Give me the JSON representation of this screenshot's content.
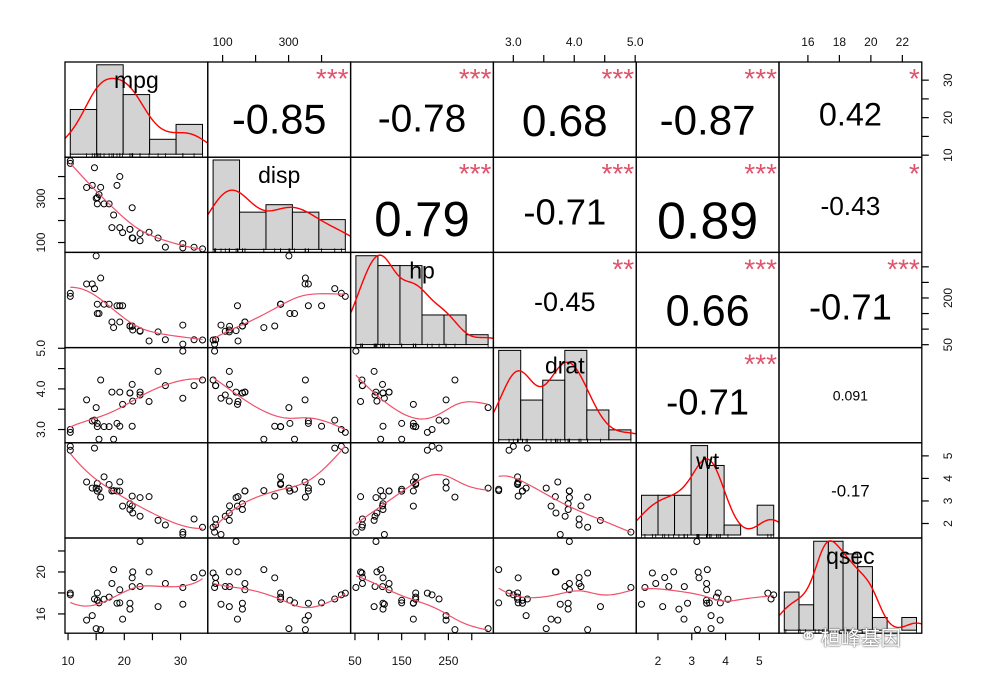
{
  "chart_data": {
    "type": "scatter-matrix",
    "title": "",
    "colors": {
      "stars": "#DF536B",
      "smooth": "#F0506A",
      "density": "#FF0000",
      "bars": "#D3D3D3"
    },
    "variables": [
      {
        "name": "mpg",
        "bins": 5,
        "values": [
          21.0,
          21.0,
          22.8,
          21.4,
          18.7,
          18.1,
          14.3,
          24.4,
          22.8,
          19.2,
          17.8,
          16.4,
          17.3,
          15.2,
          10.4,
          10.4,
          14.7,
          32.4,
          30.4,
          33.9,
          21.5,
          15.5,
          15.2,
          13.3,
          19.2,
          27.3,
          26.0,
          30.4,
          15.8,
          19.7,
          15.0,
          21.4
        ]
      },
      {
        "name": "disp",
        "bins": 5,
        "values": [
          160,
          160,
          108,
          258,
          360,
          225,
          360,
          146.7,
          140.8,
          167.6,
          167.6,
          275.8,
          275.8,
          275.8,
          472,
          460,
          440,
          78.7,
          75.7,
          71.1,
          120.1,
          318,
          304,
          350,
          400,
          79,
          120.3,
          95.1,
          351,
          145,
          301,
          121
        ]
      },
      {
        "name": "hp",
        "bins": 6,
        "values": [
          110,
          110,
          93,
          110,
          175,
          105,
          245,
          62,
          95,
          123,
          123,
          180,
          180,
          180,
          205,
          215,
          230,
          66,
          52,
          65,
          97,
          150,
          150,
          245,
          175,
          66,
          91,
          113,
          264,
          175,
          335,
          109
        ]
      },
      {
        "name": "drat",
        "bins": 6,
        "values": [
          3.9,
          3.9,
          3.85,
          3.08,
          3.15,
          2.76,
          3.21,
          3.69,
          3.92,
          3.92,
          3.92,
          3.07,
          3.07,
          3.07,
          2.93,
          3.0,
          3.23,
          4.08,
          4.93,
          4.22,
          3.7,
          2.76,
          3.15,
          3.73,
          3.08,
          4.08,
          4.43,
          3.77,
          4.22,
          3.62,
          3.54,
          4.11
        ]
      },
      {
        "name": "wt",
        "bins": 8,
        "values": [
          2.62,
          2.875,
          2.32,
          3.215,
          3.44,
          3.46,
          3.57,
          3.19,
          3.15,
          3.44,
          3.44,
          4.07,
          3.73,
          3.78,
          5.25,
          5.424,
          5.345,
          2.2,
          1.615,
          1.835,
          2.465,
          3.52,
          3.435,
          3.84,
          3.845,
          1.935,
          2.14,
          1.513,
          3.17,
          2.77,
          3.57,
          2.78
        ]
      },
      {
        "name": "qsec",
        "bins": 9,
        "values": [
          16.46,
          17.02,
          18.61,
          19.44,
          17.02,
          20.22,
          15.84,
          20.0,
          22.9,
          18.3,
          18.9,
          17.4,
          17.6,
          18.0,
          17.98,
          17.82,
          17.42,
          19.47,
          18.52,
          19.9,
          20.01,
          17.05,
          17.3,
          15.41,
          17.05,
          18.9,
          16.7,
          16.92,
          14.5,
          15.5,
          14.6,
          18.6
        ]
      }
    ],
    "correlations": [
      {
        "row": 0,
        "col": 1,
        "r": -0.85,
        "text": "-0.85",
        "stars": "***"
      },
      {
        "row": 0,
        "col": 2,
        "r": -0.78,
        "text": "-0.78",
        "stars": "***"
      },
      {
        "row": 0,
        "col": 3,
        "r": 0.68,
        "text": "0.68",
        "stars": "***"
      },
      {
        "row": 0,
        "col": 4,
        "r": -0.87,
        "text": "-0.87",
        "stars": "***"
      },
      {
        "row": 0,
        "col": 5,
        "r": 0.42,
        "text": "0.42",
        "stars": "*"
      },
      {
        "row": 1,
        "col": 2,
        "r": 0.79,
        "text": "0.79",
        "stars": "***"
      },
      {
        "row": 1,
        "col": 3,
        "r": -0.71,
        "text": "-0.71",
        "stars": "***"
      },
      {
        "row": 1,
        "col": 4,
        "r": 0.89,
        "text": "0.89",
        "stars": "***"
      },
      {
        "row": 1,
        "col": 5,
        "r": -0.43,
        "text": "-0.43",
        "stars": "*"
      },
      {
        "row": 2,
        "col": 3,
        "r": -0.45,
        "text": "-0.45",
        "stars": "**"
      },
      {
        "row": 2,
        "col": 4,
        "r": 0.66,
        "text": "0.66",
        "stars": "***"
      },
      {
        "row": 2,
        "col": 5,
        "r": -0.71,
        "text": "-0.71",
        "stars": "***"
      },
      {
        "row": 3,
        "col": 4,
        "r": -0.71,
        "text": "-0.71",
        "stars": "***"
      },
      {
        "row": 3,
        "col": 5,
        "r": 0.091,
        "text": "0.091",
        "stars": ""
      },
      {
        "row": 4,
        "col": 5,
        "r": -0.17,
        "text": "-0.17",
        "stars": ""
      }
    ],
    "axes": [
      {
        "side": "top",
        "var": 1,
        "ticks": [
          100,
          200,
          300,
          400
        ],
        "labels": [
          {
            "v": 100,
            "t": "100"
          },
          {
            "v": 300,
            "t": "300"
          }
        ]
      },
      {
        "side": "top",
        "var": 3,
        "ticks": [
          3.0,
          3.5,
          4.0,
          4.5,
          5.0
        ],
        "labels": [
          {
            "v": 3.0,
            "t": "3.0"
          },
          {
            "v": 4.0,
            "t": "4.0"
          },
          {
            "v": 5.0,
            "t": "5.0"
          }
        ]
      },
      {
        "side": "top",
        "var": 5,
        "ticks": [
          16,
          18,
          20,
          22
        ],
        "labels": [
          {
            "v": 16,
            "t": "16"
          },
          {
            "v": 18,
            "t": "18"
          },
          {
            "v": 20,
            "t": "20"
          },
          {
            "v": 22,
            "t": "22"
          }
        ]
      },
      {
        "side": "right",
        "var": 0,
        "ticks": [
          10,
          15,
          20,
          25,
          30
        ],
        "labels": [
          {
            "v": 10,
            "t": "10"
          },
          {
            "v": 20,
            "t": "20"
          },
          {
            "v": 30,
            "t": "30"
          }
        ]
      },
      {
        "side": "right",
        "var": 2,
        "ticks": [
          50,
          100,
          150,
          200,
          250,
          300
        ],
        "labels": [
          {
            "v": 50,
            "t": "50"
          },
          {
            "v": 200,
            "t": "200"
          }
        ]
      },
      {
        "side": "right",
        "var": 4,
        "ticks": [
          2,
          3,
          4,
          5
        ],
        "labels": [
          {
            "v": 2,
            "t": "2"
          },
          {
            "v": 3,
            "t": "3"
          },
          {
            "v": 4,
            "t": "4"
          },
          {
            "v": 5,
            "t": "5"
          }
        ]
      },
      {
        "side": "left",
        "var": 1,
        "ticks": [
          100,
          200,
          300,
          400
        ],
        "labels": [
          {
            "v": 100,
            "t": "100"
          },
          {
            "v": 300,
            "t": "300"
          }
        ]
      },
      {
        "side": "left",
        "var": 3,
        "ticks": [
          3.0,
          3.5,
          4.0,
          4.5,
          5.0
        ],
        "labels": [
          {
            "v": 3.0,
            "t": "3.0"
          },
          {
            "v": 4.0,
            "t": "4.0"
          },
          {
            "v": 5.0,
            "t": "5.0"
          }
        ]
      },
      {
        "side": "left",
        "var": 5,
        "ticks": [
          16,
          18,
          20,
          22
        ],
        "labels": [
          {
            "v": 16,
            "t": "16"
          },
          {
            "v": 20,
            "t": "20"
          }
        ]
      },
      {
        "side": "bottom",
        "var": 0,
        "ticks": [
          10,
          15,
          20,
          25,
          30
        ],
        "labels": [
          {
            "v": 10,
            "t": "10"
          },
          {
            "v": 20,
            "t": "20"
          },
          {
            "v": 30,
            "t": "30"
          }
        ]
      },
      {
        "side": "bottom",
        "var": 2,
        "ticks": [
          50,
          100,
          150,
          200,
          250,
          300
        ],
        "labels": [
          {
            "v": 50,
            "t": "50"
          },
          {
            "v": 150,
            "t": "150"
          },
          {
            "v": 250,
            "t": "250"
          }
        ]
      },
      {
        "side": "bottom",
        "var": 4,
        "ticks": [
          2,
          3,
          4,
          5
        ],
        "labels": [
          {
            "v": 2,
            "t": "2"
          },
          {
            "v": 3,
            "t": "3"
          },
          {
            "v": 4,
            "t": "4"
          },
          {
            "v": 5,
            "t": "5"
          }
        ]
      }
    ]
  },
  "watermark": {
    "text": "桓峰基因"
  }
}
